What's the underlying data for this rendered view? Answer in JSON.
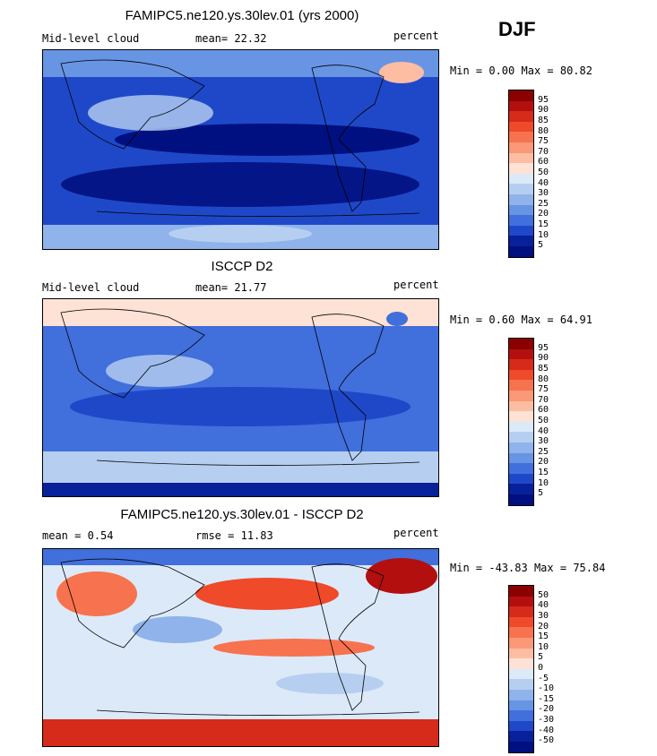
{
  "season": "DJF",
  "chart_data": [
    {
      "type": "heatmap",
      "title": "FAMIPC5.ne120.ys.30lev.01 (yrs 2000)",
      "left_label": "Mid-level cloud",
      "stat_label": "mean=",
      "stat_value": "22.32",
      "units": "percent",
      "min_label": "Min =",
      "min_value": "0.00",
      "max_label": "Max =",
      "max_value": "80.82",
      "colorbar_levels": [
        "95",
        "90",
        "85",
        "80",
        "75",
        "70",
        "60",
        "50",
        "40",
        "30",
        "25",
        "20",
        "15",
        "10",
        "5"
      ],
      "colorbar_colors": [
        "#8b0000",
        "#b30f0f",
        "#d62a1a",
        "#ef4a2a",
        "#f7724e",
        "#fb9877",
        "#fdbda3",
        "#fee2d5",
        "#dce9f8",
        "#b6cff1",
        "#8fb3ea",
        "#6894e4",
        "#416fdc",
        "#1f48c9",
        "#08209a",
        "#001080"
      ]
    },
    {
      "type": "heatmap",
      "title": "ISCCP D2",
      "left_label": "Mid-level cloud",
      "stat_label": "mean=",
      "stat_value": "21.77",
      "units": "percent",
      "min_label": "Min =",
      "min_value": "0.60",
      "max_label": "Max =",
      "max_value": "64.91",
      "colorbar_levels": [
        "95",
        "90",
        "85",
        "80",
        "75",
        "70",
        "60",
        "50",
        "40",
        "30",
        "25",
        "20",
        "15",
        "10",
        "5"
      ],
      "colorbar_colors": [
        "#8b0000",
        "#b30f0f",
        "#d62a1a",
        "#ef4a2a",
        "#f7724e",
        "#fb9877",
        "#fdbda3",
        "#fee2d5",
        "#dce9f8",
        "#b6cff1",
        "#8fb3ea",
        "#6894e4",
        "#416fdc",
        "#1f48c9",
        "#08209a",
        "#001080"
      ]
    },
    {
      "type": "heatmap",
      "title": "FAMIPC5.ne120.ys.30lev.01 - ISCCP D2",
      "mean_label": "mean =",
      "mean_value": "0.54",
      "rmse_label": "rmse =",
      "rmse_value": "11.83",
      "units": "percent",
      "min_label": "Min =",
      "min_value": "-43.83",
      "max_label": "Max =",
      "max_value": "75.84",
      "colorbar_levels": [
        "50",
        "40",
        "30",
        "20",
        "15",
        "10",
        "5",
        "0",
        "-5",
        "-10",
        "-15",
        "-20",
        "-30",
        "-40",
        "-50"
      ],
      "colorbar_colors": [
        "#8b0000",
        "#b30f0f",
        "#d62a1a",
        "#ef4a2a",
        "#f7724e",
        "#fb9877",
        "#fdbda3",
        "#fee2d5",
        "#dce9f8",
        "#b6cff1",
        "#8fb3ea",
        "#6894e4",
        "#416fdc",
        "#1f48c9",
        "#08209a",
        "#001080"
      ]
    }
  ]
}
